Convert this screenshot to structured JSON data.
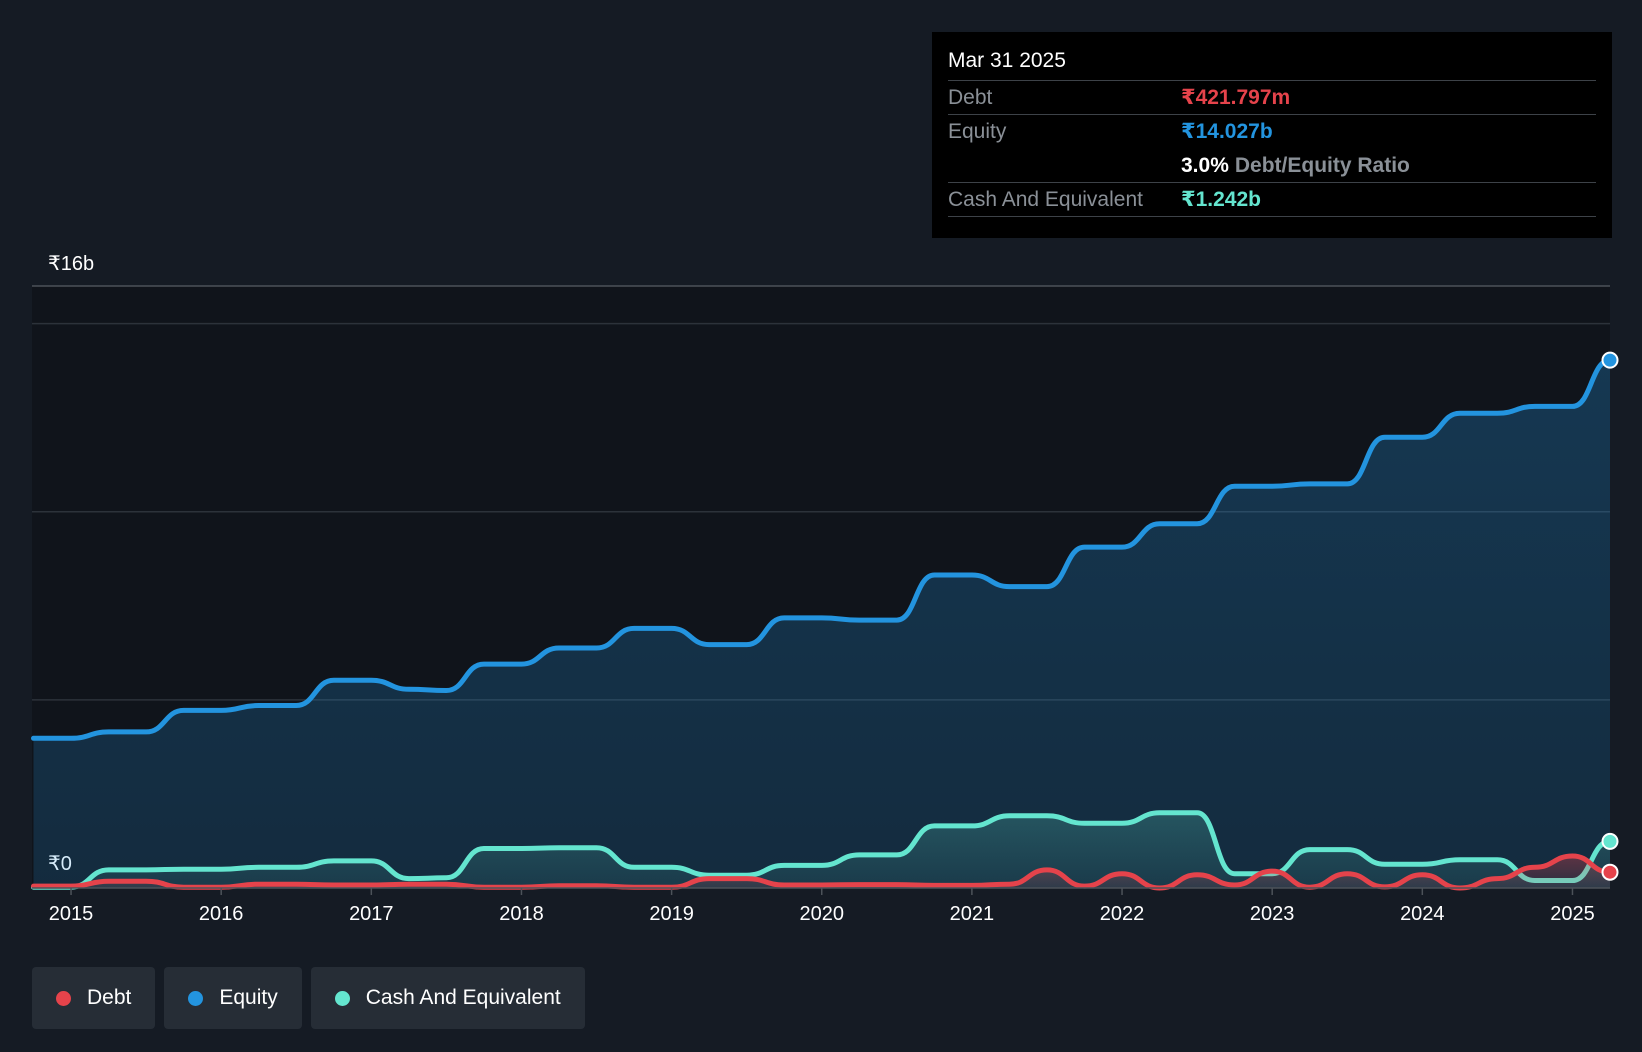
{
  "tooltip": {
    "date": "Mar 31 2025",
    "debt_label": "Debt",
    "debt_value": "₹421.797m",
    "equity_label": "Equity",
    "equity_value": "₹14.027b",
    "ratio_value": "3.0%",
    "ratio_label": "Debt/Equity Ratio",
    "cash_label": "Cash And Equivalent",
    "cash_value": "₹1.242b"
  },
  "legend": {
    "debt": "Debt",
    "equity": "Equity",
    "cash": "Cash And Equivalent"
  },
  "colors": {
    "debt": "#e5434b",
    "equity": "#2394df",
    "cash": "#64e5cf",
    "background": "#151b24",
    "plot_background": "#10141b"
  },
  "chart_data": {
    "type": "area",
    "title": "",
    "xlabel": "",
    "ylabel": "",
    "y_axis_labels": [
      "₹16b",
      "₹0"
    ],
    "ylim": [
      0,
      16
    ],
    "y_unit": "₹ billions",
    "xlim": [
      2014.74,
      2025.25
    ],
    "x_ticks": [
      "2015",
      "2016",
      "2017",
      "2018",
      "2019",
      "2020",
      "2021",
      "2022",
      "2023",
      "2024",
      "2025"
    ],
    "series": [
      {
        "name": "Equity",
        "x": [
          2014.75,
          2015.0,
          2015.25,
          2015.5,
          2015.75,
          2016.0,
          2016.25,
          2016.5,
          2016.75,
          2017.0,
          2017.25,
          2017.5,
          2017.75,
          2018.0,
          2018.25,
          2018.5,
          2018.75,
          2019.0,
          2019.25,
          2019.5,
          2019.75,
          2020.0,
          2020.25,
          2020.5,
          2020.75,
          2021.0,
          2021.25,
          2021.5,
          2021.75,
          2022.0,
          2022.25,
          2022.5,
          2022.75,
          2023.0,
          2023.25,
          2023.5,
          2023.75,
          2024.0,
          2024.25,
          2024.5,
          2024.75,
          2025.0,
          2025.25
        ],
        "values": [
          3.98,
          3.98,
          4.15,
          4.15,
          4.72,
          4.72,
          4.85,
          4.85,
          5.52,
          5.52,
          5.28,
          5.25,
          5.95,
          5.95,
          6.38,
          6.38,
          6.9,
          6.9,
          6.47,
          6.47,
          7.18,
          7.18,
          7.12,
          7.12,
          8.32,
          8.32,
          8.01,
          8.01,
          9.06,
          9.06,
          9.68,
          9.68,
          10.68,
          10.68,
          10.74,
          10.74,
          11.98,
          11.98,
          12.62,
          12.62,
          12.8,
          12.8,
          14.03
        ]
      },
      {
        "name": "Cash And Equivalent",
        "x": [
          2014.75,
          2015.0,
          2015.25,
          2015.5,
          2015.75,
          2016.0,
          2016.25,
          2016.5,
          2016.75,
          2017.0,
          2017.25,
          2017.5,
          2017.75,
          2018.0,
          2018.25,
          2018.5,
          2018.75,
          2019.0,
          2019.25,
          2019.5,
          2019.75,
          2020.0,
          2020.25,
          2020.5,
          2020.75,
          2021.0,
          2021.25,
          2021.5,
          2021.75,
          2022.0,
          2022.25,
          2022.5,
          2022.75,
          2023.0,
          2023.25,
          2023.5,
          2023.75,
          2024.0,
          2024.25,
          2024.5,
          2024.75,
          2025.0,
          2025.25
        ],
        "values": [
          0.02,
          0.02,
          0.48,
          0.48,
          0.5,
          0.5,
          0.55,
          0.55,
          0.72,
          0.72,
          0.25,
          0.27,
          1.05,
          1.05,
          1.07,
          1.07,
          0.55,
          0.55,
          0.34,
          0.34,
          0.6,
          0.6,
          0.88,
          0.88,
          1.65,
          1.65,
          1.92,
          1.92,
          1.72,
          1.72,
          2.0,
          2.0,
          0.38,
          0.38,
          1.02,
          1.02,
          0.63,
          0.63,
          0.75,
          0.75,
          0.2,
          0.2,
          1.24
        ]
      },
      {
        "name": "Debt",
        "x": [
          2014.75,
          2015.0,
          2015.25,
          2015.5,
          2015.75,
          2016.0,
          2016.25,
          2016.5,
          2016.75,
          2017.0,
          2017.25,
          2017.5,
          2017.75,
          2018.0,
          2018.25,
          2018.5,
          2018.75,
          2019.0,
          2019.25,
          2019.5,
          2019.75,
          2020.0,
          2020.25,
          2020.5,
          2020.75,
          2021.0,
          2021.25,
          2021.5,
          2021.75,
          2022.0,
          2022.25,
          2022.5,
          2022.75,
          2023.0,
          2023.25,
          2023.5,
          2023.75,
          2024.0,
          2024.25,
          2024.5,
          2024.75,
          2025.0,
          2025.25
        ],
        "values": [
          0.05,
          0.05,
          0.18,
          0.18,
          0.02,
          0.02,
          0.1,
          0.1,
          0.08,
          0.08,
          0.1,
          0.1,
          0.02,
          0.02,
          0.06,
          0.06,
          0.02,
          0.02,
          0.25,
          0.25,
          0.08,
          0.08,
          0.09,
          0.09,
          0.07,
          0.07,
          0.1,
          0.48,
          0.05,
          0.38,
          0.0,
          0.35,
          0.08,
          0.45,
          0.02,
          0.38,
          0.03,
          0.35,
          0.0,
          0.25,
          0.55,
          0.85,
          0.42
        ]
      }
    ]
  }
}
